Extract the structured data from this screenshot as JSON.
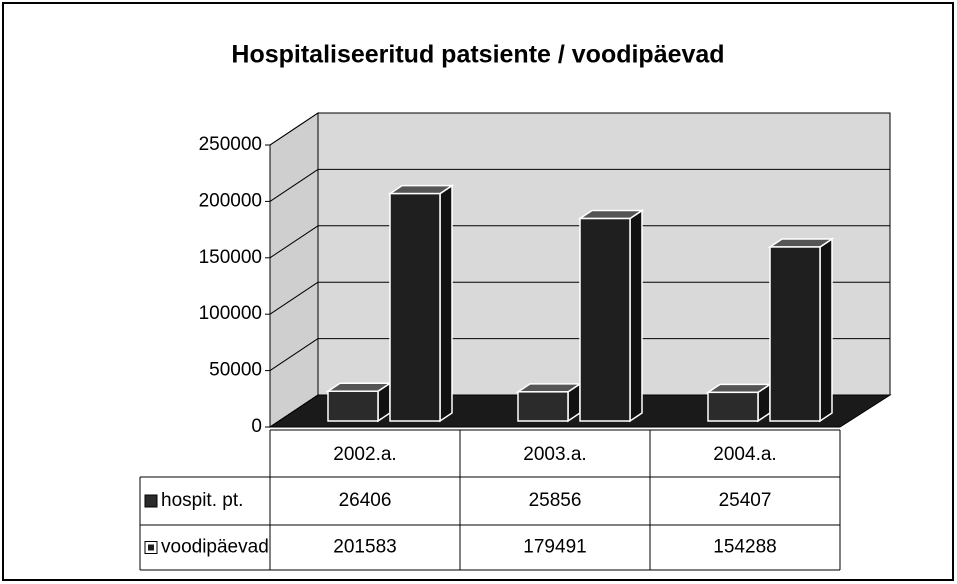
{
  "chart_data": {
    "type": "bar3d",
    "title": "Hospitaliseeritud patsiente / voodipäevad",
    "categories": [
      "2002.a.",
      "2003.a.",
      "2004.a."
    ],
    "series": [
      {
        "name": "hospit. pt.",
        "color": "#2b2b2b",
        "values": [
          26406,
          25856,
          25407
        ]
      },
      {
        "name": "voodipäevad",
        "color": "#1f1f1f",
        "values": [
          201583,
          179491,
          154288
        ]
      }
    ],
    "ylim": [
      0,
      250000
    ],
    "yticks": [
      0,
      50000,
      100000,
      150000,
      200000,
      250000
    ],
    "grid": true
  }
}
